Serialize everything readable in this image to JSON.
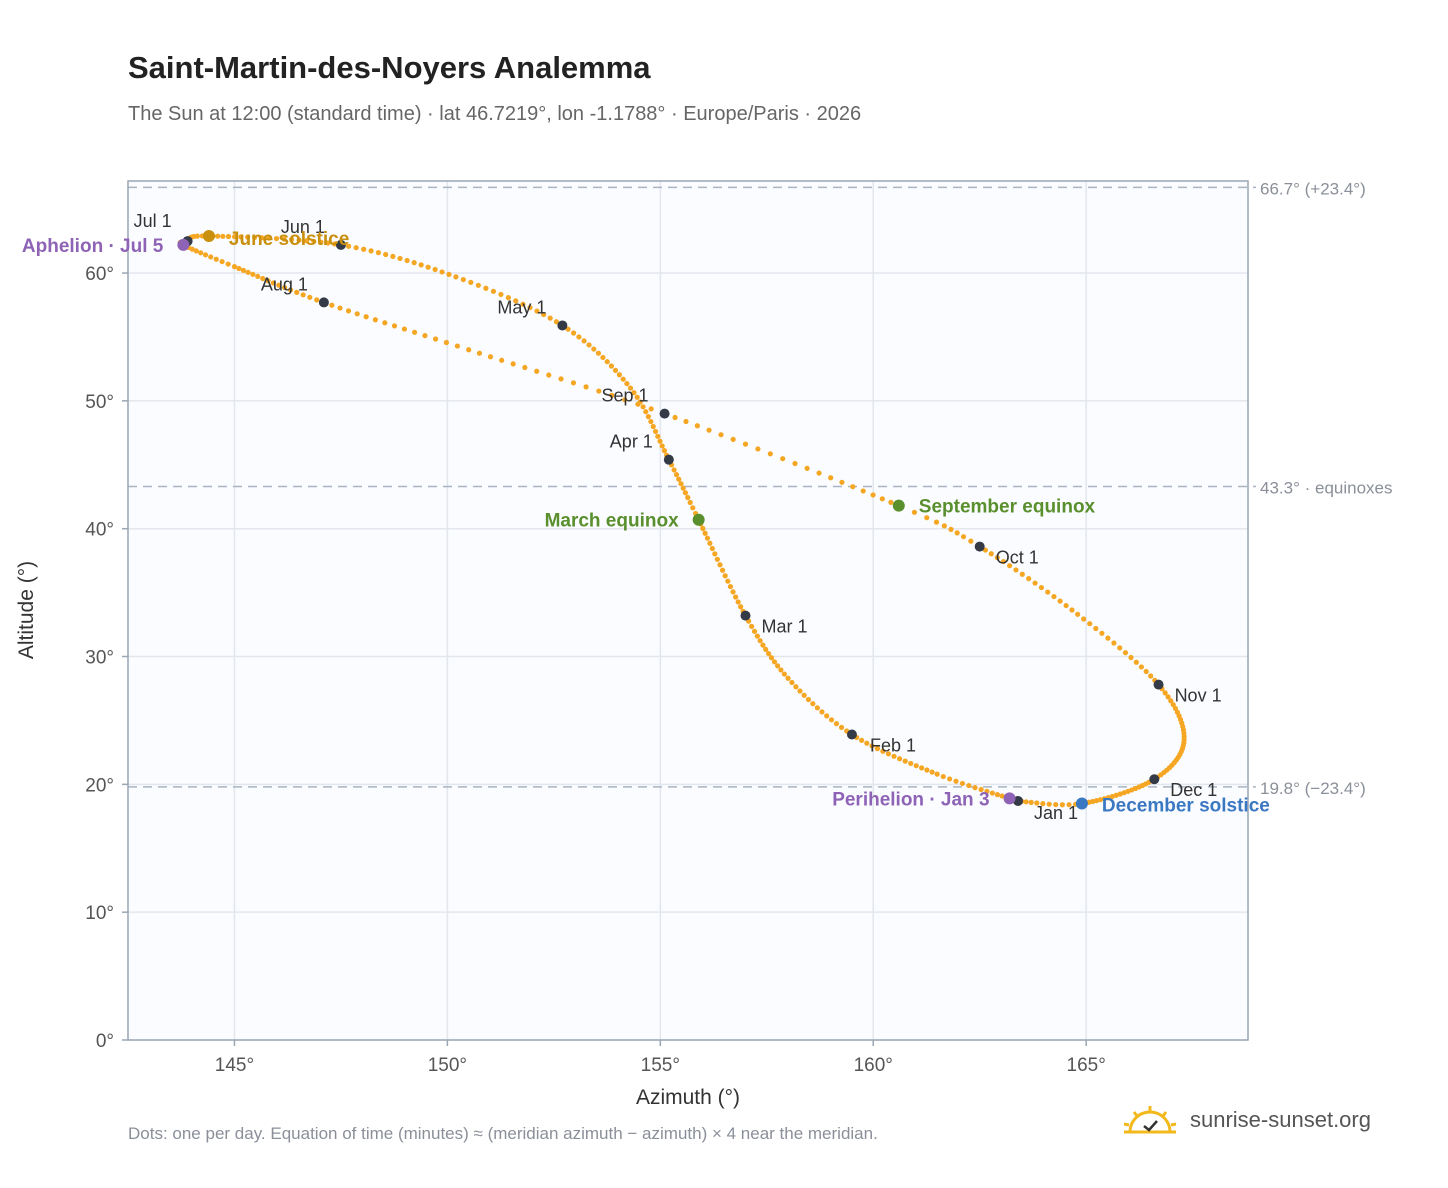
{
  "header": {
    "title": "Saint-Martin-des-Noyers Analemma",
    "subtitle": "The Sun at 12:00 (standard time) · lat 46.7219°, lon -1.1788° · Europe/Paris · 2026"
  },
  "footer": {
    "note": "Dots: one per day. Equation of time (minutes) ≈ (meridian azimuth − azimuth) × 4 near the meridian.",
    "brand": "sunrise-sunset.org"
  },
  "chart_data": {
    "type": "scatter",
    "xlabel": "Azimuth (°)",
    "ylabel": "Altitude (°)",
    "xlim": [
      142.5,
      168.8
    ],
    "ylim": [
      0,
      67.2
    ],
    "xticks": [
      145,
      150,
      155,
      160,
      165
    ],
    "yticks": [
      0,
      10,
      20,
      30,
      40,
      50,
      60
    ],
    "x_tick_labels": [
      "145°",
      "150°",
      "155°",
      "160°",
      "165°"
    ],
    "y_tick_labels": [
      "0°",
      "10°",
      "20°",
      "30°",
      "40°",
      "50°",
      "60°"
    ],
    "grid": true,
    "colors": {
      "curve": "#f5a623",
      "month_marker": "#343a46",
      "equinox": "#5a8f2e",
      "june_solstice": "#c8900e",
      "december_solstice": "#3b78c2",
      "apsis": "#8e63b5",
      "reference_line": "#a9b4c2"
    },
    "reference_lines": [
      {
        "altitude": 66.7,
        "label": "66.7° (+23.4°)"
      },
      {
        "altitude": 43.3,
        "label": "43.3° · equinoxes"
      },
      {
        "altitude": 19.8,
        "label": "19.8° (−23.4°)"
      }
    ],
    "month_markers": [
      {
        "label": "Jan 1",
        "az": 163.4,
        "alt": 18.7
      },
      {
        "label": "Feb 1",
        "az": 159.5,
        "alt": 23.9
      },
      {
        "label": "Mar 1",
        "az": 157.0,
        "alt": 33.2
      },
      {
        "label": "Apr 1",
        "az": 155.2,
        "alt": 45.4
      },
      {
        "label": "May 1",
        "az": 152.7,
        "alt": 55.9
      },
      {
        "label": "Jun 1",
        "az": 147.5,
        "alt": 62.2
      },
      {
        "label": "Jul 1",
        "az": 143.9,
        "alt": 62.5
      },
      {
        "label": "Aug 1",
        "az": 147.1,
        "alt": 57.7
      },
      {
        "label": "Sep 1",
        "az": 155.1,
        "alt": 49.0
      },
      {
        "label": "Oct 1",
        "az": 162.5,
        "alt": 38.6
      },
      {
        "label": "Nov 1",
        "az": 166.7,
        "alt": 27.8
      },
      {
        "label": "Dec 1",
        "az": 166.6,
        "alt": 20.4
      }
    ],
    "events": [
      {
        "label": "March equinox",
        "az": 155.9,
        "alt": 40.7,
        "color_key": "equinox"
      },
      {
        "label": "June solstice",
        "az": 144.4,
        "alt": 62.9,
        "color_key": "june_solstice"
      },
      {
        "label": "September equinox",
        "az": 160.6,
        "alt": 41.8,
        "color_key": "equinox"
      },
      {
        "label": "December solstice",
        "az": 164.9,
        "alt": 18.5,
        "color_key": "december_solstice"
      },
      {
        "label": "Perihelion · Jan 3",
        "az": 163.2,
        "alt": 18.9,
        "color_key": "apsis"
      },
      {
        "label": "Aphelion · Jul 5",
        "az": 143.8,
        "alt": 62.2,
        "color_key": "apsis"
      }
    ],
    "path_keypoints": [
      {
        "day": 1,
        "az": 163.4,
        "alt": 18.7
      },
      {
        "day": 3,
        "az": 163.2,
        "alt": 18.9
      },
      {
        "day": 16,
        "az": 161.5,
        "alt": 20.8
      },
      {
        "day": 32,
        "az": 159.5,
        "alt": 23.9
      },
      {
        "day": 46,
        "az": 158.0,
        "alt": 28.3
      },
      {
        "day": 60,
        "az": 157.0,
        "alt": 33.2
      },
      {
        "day": 79,
        "az": 155.9,
        "alt": 40.7
      },
      {
        "day": 91,
        "az": 155.2,
        "alt": 45.4
      },
      {
        "day": 106,
        "az": 154.3,
        "alt": 51.0
      },
      {
        "day": 121,
        "az": 152.7,
        "alt": 55.9
      },
      {
        "day": 136,
        "az": 150.2,
        "alt": 59.7
      },
      {
        "day": 152,
        "az": 147.5,
        "alt": 62.2
      },
      {
        "day": 172,
        "az": 144.4,
        "alt": 62.9
      },
      {
        "day": 182,
        "az": 143.9,
        "alt": 62.5
      },
      {
        "day": 186,
        "az": 143.8,
        "alt": 62.2
      },
      {
        "day": 197,
        "az": 145.0,
        "alt": 60.5
      },
      {
        "day": 213,
        "az": 147.1,
        "alt": 57.7
      },
      {
        "day": 228,
        "az": 150.5,
        "alt": 54.0
      },
      {
        "day": 244,
        "az": 155.1,
        "alt": 49.0
      },
      {
        "day": 265,
        "az": 160.6,
        "alt": 41.8
      },
      {
        "day": 274,
        "az": 162.5,
        "alt": 38.6
      },
      {
        "day": 290,
        "az": 164.8,
        "alt": 33.3
      },
      {
        "day": 305,
        "az": 166.7,
        "alt": 27.8
      },
      {
        "day": 320,
        "az": 167.3,
        "alt": 23.5
      },
      {
        "day": 335,
        "az": 166.6,
        "alt": 20.4
      },
      {
        "day": 355,
        "az": 164.9,
        "alt": 18.5
      },
      {
        "day": 366,
        "az": 163.4,
        "alt": 18.7
      }
    ]
  }
}
